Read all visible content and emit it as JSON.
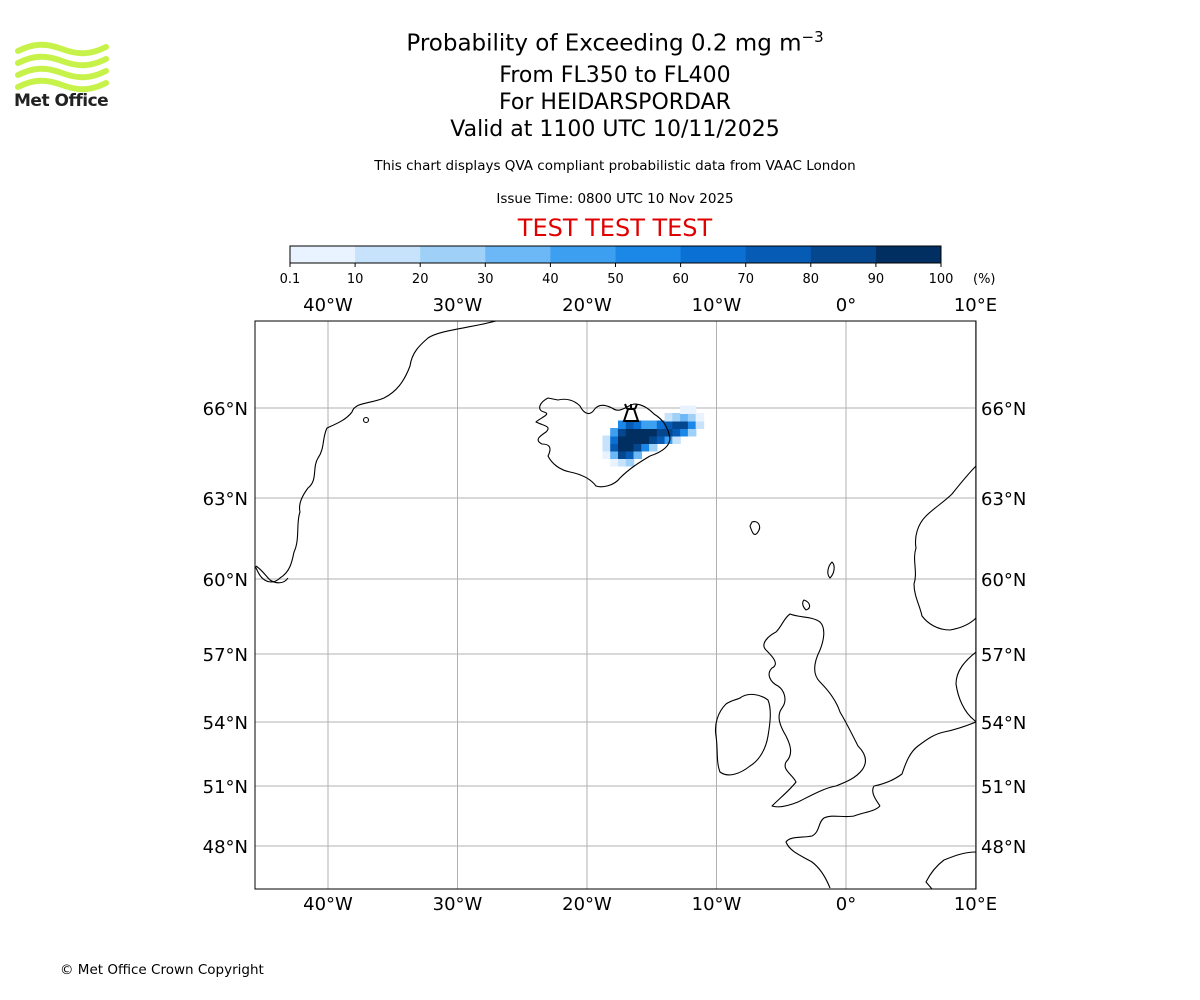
{
  "header": {
    "title_main": "Probability of Exceeding 0.2 mg m",
    "title_exp": "−3",
    "line2": "From FL350 to FL400",
    "line3": "For HEIDARSPORDAR",
    "line4": "Valid at 1100 UTC 10/11/2025",
    "subtitle": "This chart displays QVA compliant probabilistic data from VAAC London",
    "issue_time": "Issue Time: 0800 UTC 10 Nov 2025",
    "test_banner": "TEST TEST TEST",
    "test_color": "#e00000"
  },
  "logo": {
    "name": "Met Office",
    "color": "#c6f24a"
  },
  "footer": {
    "copyright": "© Met Office Crown Copyright"
  },
  "chart_data": {
    "type": "heatmap",
    "colorbar": {
      "ticks": [
        "0.1",
        "10",
        "20",
        "30",
        "40",
        "50",
        "60",
        "70",
        "80",
        "90",
        "100"
      ],
      "unit": "(%)",
      "colors": [
        "#e8f3ff",
        "#c6e3fb",
        "#9fd0f8",
        "#6cb7f5",
        "#3d9ff0",
        "#1b88e8",
        "#0b70d4",
        "#065bb4",
        "#04478f",
        "#022f62"
      ]
    },
    "lon_ticks": [
      {
        "lon": -40,
        "label": "40°W"
      },
      {
        "lon": -30,
        "label": "30°W"
      },
      {
        "lon": -20,
        "label": "20°W"
      },
      {
        "lon": -10,
        "label": "10°W"
      },
      {
        "lon": 0,
        "label": "0°"
      },
      {
        "lon": 10,
        "label": "10°E"
      }
    ],
    "lat_ticks": [
      {
        "lat": 66,
        "label": "66°N"
      },
      {
        "lat": 63,
        "label": "63°N"
      },
      {
        "lat": 60,
        "label": "60°N"
      },
      {
        "lat": 57,
        "label": "57°N"
      },
      {
        "lat": 54,
        "label": "54°N"
      },
      {
        "lat": 51,
        "label": "51°N"
      },
      {
        "lat": 48,
        "label": "48°N"
      }
    ],
    "volcano": {
      "name": "HEIDARSPORDAR",
      "lon": -16.6,
      "lat": 65.8
    },
    "probability_cells": [
      {
        "lon": -17.9,
        "lat": 64.2,
        "p": 5
      },
      {
        "lon": -17.3,
        "lat": 64.2,
        "p": 15
      },
      {
        "lon": -16.7,
        "lat": 64.2,
        "p": 25
      },
      {
        "lon": -18.5,
        "lat": 64.45,
        "p": 5
      },
      {
        "lon": -17.9,
        "lat": 64.45,
        "p": 35
      },
      {
        "lon": -17.3,
        "lat": 64.45,
        "p": 85
      },
      {
        "lon": -16.7,
        "lat": 64.45,
        "p": 75
      },
      {
        "lon": -16.1,
        "lat": 64.45,
        "p": 35
      },
      {
        "lon": -18.5,
        "lat": 64.7,
        "p": 15
      },
      {
        "lon": -17.9,
        "lat": 64.7,
        "p": 75
      },
      {
        "lon": -17.3,
        "lat": 64.7,
        "p": 95
      },
      {
        "lon": -16.7,
        "lat": 64.7,
        "p": 95
      },
      {
        "lon": -16.1,
        "lat": 64.7,
        "p": 85
      },
      {
        "lon": -15.5,
        "lat": 64.7,
        "p": 55
      },
      {
        "lon": -14.9,
        "lat": 64.7,
        "p": 25
      },
      {
        "lon": -18.5,
        "lat": 64.95,
        "p": 15
      },
      {
        "lon": -17.9,
        "lat": 64.95,
        "p": 65
      },
      {
        "lon": -17.3,
        "lat": 64.95,
        "p": 95
      },
      {
        "lon": -16.7,
        "lat": 64.95,
        "p": 95
      },
      {
        "lon": -16.1,
        "lat": 64.95,
        "p": 95
      },
      {
        "lon": -15.5,
        "lat": 64.95,
        "p": 95
      },
      {
        "lon": -14.9,
        "lat": 64.95,
        "p": 85
      },
      {
        "lon": -14.3,
        "lat": 64.95,
        "p": 75
      },
      {
        "lon": -13.7,
        "lat": 64.95,
        "p": 45
      },
      {
        "lon": -13.1,
        "lat": 64.95,
        "p": 15
      },
      {
        "lon": -17.9,
        "lat": 65.2,
        "p": 45
      },
      {
        "lon": -17.3,
        "lat": 65.2,
        "p": 85
      },
      {
        "lon": -16.7,
        "lat": 65.2,
        "p": 95
      },
      {
        "lon": -16.1,
        "lat": 65.2,
        "p": 95
      },
      {
        "lon": -15.5,
        "lat": 65.2,
        "p": 95
      },
      {
        "lon": -14.9,
        "lat": 65.2,
        "p": 95
      },
      {
        "lon": -14.3,
        "lat": 65.2,
        "p": 85
      },
      {
        "lon": -13.7,
        "lat": 65.2,
        "p": 85
      },
      {
        "lon": -13.1,
        "lat": 65.2,
        "p": 75
      },
      {
        "lon": -12.5,
        "lat": 65.2,
        "p": 55
      },
      {
        "lon": -11.9,
        "lat": 65.2,
        "p": 25
      },
      {
        "lon": -17.3,
        "lat": 65.45,
        "p": 55
      },
      {
        "lon": -16.7,
        "lat": 65.45,
        "p": 75
      },
      {
        "lon": -16.1,
        "lat": 65.45,
        "p": 65
      },
      {
        "lon": -15.5,
        "lat": 65.45,
        "p": 45
      },
      {
        "lon": -14.9,
        "lat": 65.45,
        "p": 45
      },
      {
        "lon": -14.3,
        "lat": 65.45,
        "p": 65
      },
      {
        "lon": -13.7,
        "lat": 65.45,
        "p": 75
      },
      {
        "lon": -13.1,
        "lat": 65.45,
        "p": 85
      },
      {
        "lon": -12.5,
        "lat": 65.45,
        "p": 85
      },
      {
        "lon": -11.9,
        "lat": 65.45,
        "p": 55
      },
      {
        "lon": -11.3,
        "lat": 65.45,
        "p": 15
      },
      {
        "lon": -13.7,
        "lat": 65.7,
        "p": 15
      },
      {
        "lon": -13.1,
        "lat": 65.7,
        "p": 25
      },
      {
        "lon": -12.5,
        "lat": 65.7,
        "p": 35
      },
      {
        "lon": -11.9,
        "lat": 65.7,
        "p": 25
      },
      {
        "lon": -11.3,
        "lat": 65.7,
        "p": 5
      },
      {
        "lon": -12.5,
        "lat": 65.95,
        "p": 5
      },
      {
        "lon": -11.9,
        "lat": 65.95,
        "p": 5
      }
    ]
  }
}
